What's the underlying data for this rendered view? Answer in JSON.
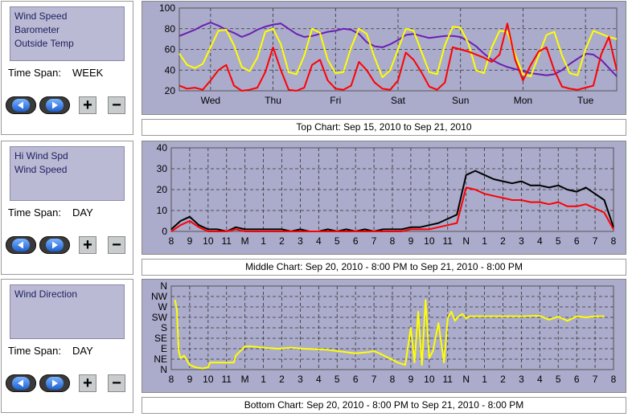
{
  "panels": [
    {
      "series_labels": [
        "Wind Speed",
        "Barometer",
        "Outside Temp"
      ],
      "time_span_label": "Time Span:",
      "time_span_value": "WEEK",
      "caption": "Top Chart:  Sep 15, 2010  to  Sep 21, 2010"
    },
    {
      "series_labels": [
        "Hi Wind Spd",
        "Wind Speed"
      ],
      "time_span_label": "Time Span:",
      "time_span_value": "DAY",
      "caption": "Middle Chart:  Sep 20, 2010 - 8:00 PM  to  Sep 21, 2010 - 8:00 PM"
    },
    {
      "series_labels": [
        "Wind Direction"
      ],
      "time_span_label": "Time Span:",
      "time_span_value": "DAY",
      "caption": "Bottom Chart:  Sep 20, 2010 - 8:00 PM  to  Sep 21, 2010 - 8:00 PM"
    }
  ],
  "buttons": {
    "plus": "+",
    "minus": "−"
  },
  "icons": {
    "back": "back-arrow-icon",
    "forward": "forward-arrow-icon"
  },
  "colors": {
    "plot_bg": "#ababcc",
    "wind_speed": "#ff0000",
    "hi_wind": "#000000",
    "barometer": "#6a1fb0",
    "temp": "#ffff00",
    "direction": "#ffff00"
  },
  "chart_data": [
    {
      "type": "line",
      "x_tick_labels": [
        "Wed",
        "Thu",
        "Fri",
        "Sat",
        "Sun",
        "Mon",
        "Tue"
      ],
      "y_tick_labels": [
        "20",
        "40",
        "60",
        "80",
        "100"
      ],
      "ylim": [
        20,
        100
      ],
      "grid": true,
      "series": [
        {
          "color": "#6a1fb0",
          "x": [
            0,
            0.5,
            1,
            1.5,
            2,
            2.5,
            3,
            3.5,
            4,
            4.5,
            5,
            5.5,
            6,
            6.5,
            7,
            7.5,
            8,
            8.5,
            9,
            9.5,
            10,
            10.5,
            11,
            11.5,
            12,
            12.5,
            13,
            13.5,
            14,
            14.5,
            15,
            15.5,
            16,
            16.5,
            17,
            17.5,
            18,
            18.5,
            19,
            19.5,
            20,
            20.5,
            21,
            21.5,
            22,
            22.5,
            23,
            23.5,
            24,
            24.5,
            25,
            25.5,
            26,
            26.5,
            27,
            27.5,
            28
          ],
          "values": [
            73,
            76,
            79,
            83,
            86,
            83,
            79,
            76,
            72,
            75,
            79,
            82,
            84,
            85,
            80,
            75,
            72,
            73,
            75,
            77,
            78,
            80,
            79,
            75,
            67,
            63,
            62,
            65,
            69,
            74,
            75,
            73,
            71,
            72,
            73,
            73,
            72,
            68,
            63,
            56,
            50,
            46,
            43,
            41,
            39,
            37,
            36,
            35,
            36,
            40,
            46,
            51,
            56,
            55,
            50,
            42,
            34
          ]
        },
        {
          "color": "#ffff00",
          "x": [
            0,
            0.5,
            1,
            1.5,
            2,
            2.5,
            3,
            3.5,
            4,
            4.5,
            5,
            5.5,
            6,
            6.5,
            7,
            7.5,
            8,
            8.5,
            9,
            9.5,
            10,
            10.5,
            11,
            11.5,
            12,
            12.5,
            13,
            13.5,
            14,
            14.5,
            15,
            15.5,
            16,
            16.5,
            17,
            17.5,
            18,
            18.5,
            19,
            19.5,
            20,
            20.5,
            21,
            21.5,
            22,
            22.5,
            23,
            23.5,
            24,
            24.5,
            25,
            25.5,
            26,
            26.5,
            27,
            27.5,
            28
          ],
          "values": [
            56,
            45,
            42,
            46,
            62,
            78,
            79,
            64,
            43,
            39,
            52,
            77,
            80,
            65,
            38,
            36,
            54,
            80,
            76,
            50,
            37,
            38,
            62,
            80,
            75,
            52,
            33,
            40,
            60,
            80,
            78,
            58,
            38,
            36,
            64,
            82,
            81,
            66,
            40,
            37,
            62,
            78,
            77,
            55,
            36,
            34,
            54,
            74,
            77,
            54,
            37,
            35,
            60,
            78,
            75,
            72,
            70
          ]
        },
        {
          "color": "#ff0000",
          "x": [
            0,
            0.5,
            1,
            1.5,
            2,
            2.5,
            3,
            3.5,
            4,
            4.5,
            5,
            5.5,
            6,
            6.5,
            7,
            7.5,
            8,
            8.5,
            9,
            9.5,
            10,
            10.5,
            11,
            11.5,
            12,
            12.5,
            13,
            13.5,
            14,
            14.5,
            15,
            15.5,
            16,
            16.5,
            17,
            17.5,
            18,
            18.5,
            19,
            19.5,
            20,
            20.5,
            21,
            21.5,
            22,
            22.5,
            23,
            23.5,
            24,
            24.5,
            25,
            25.5,
            26,
            26.5,
            27,
            27.5,
            28
          ],
          "values": [
            25,
            22,
            23,
            21,
            30,
            40,
            45,
            25,
            20,
            21,
            23,
            38,
            62,
            40,
            21,
            20,
            23,
            45,
            50,
            30,
            22,
            21,
            25,
            48,
            40,
            28,
            22,
            21,
            30,
            57,
            50,
            38,
            24,
            21,
            28,
            62,
            60,
            58,
            55,
            52,
            48,
            55,
            85,
            50,
            30,
            45,
            58,
            62,
            40,
            24,
            22,
            21,
            23,
            25,
            55,
            72,
            40
          ]
        }
      ]
    },
    {
      "type": "line",
      "x_tick_labels": [
        "8",
        "9",
        "10",
        "11",
        "M",
        "1",
        "2",
        "3",
        "4",
        "5",
        "6",
        "7",
        "8",
        "9",
        "10",
        "11",
        "N",
        "1",
        "2",
        "3",
        "4",
        "5",
        "6",
        "7",
        "8"
      ],
      "y_tick_labels": [
        "0",
        "10",
        "20",
        "30",
        "40"
      ],
      "ylim": [
        0,
        40
      ],
      "grid": true,
      "series": [
        {
          "color": "#000000",
          "x": [
            0,
            0.5,
            1,
            1.5,
            2,
            2.5,
            3,
            3.5,
            4,
            4.5,
            5,
            5.5,
            6,
            6.5,
            7,
            7.5,
            8,
            8.5,
            9,
            9.5,
            10,
            10.5,
            11,
            11.5,
            12,
            12.5,
            13,
            13.5,
            14,
            14.5,
            15,
            15.5,
            16,
            16.5,
            17,
            17.5,
            18,
            18.5,
            19,
            19.5,
            20,
            20.5,
            21,
            21.5,
            22,
            22.5,
            23,
            23.5,
            24
          ],
          "values": [
            1,
            5,
            7,
            3,
            1,
            1,
            0,
            2,
            1,
            1,
            1,
            1,
            1,
            0,
            1,
            0,
            0,
            1,
            0,
            1,
            0,
            1,
            0,
            1,
            1,
            1,
            2,
            2,
            3,
            4,
            6,
            8,
            27,
            29,
            27,
            25,
            24,
            23,
            24,
            22,
            22,
            21,
            22,
            20,
            19,
            21,
            18,
            15,
            2
          ]
        },
        {
          "color": "#ff0000",
          "x": [
            0,
            0.5,
            1,
            1.5,
            2,
            2.5,
            3,
            3.5,
            4,
            4.5,
            5,
            5.5,
            6,
            6.5,
            7,
            7.5,
            8,
            8.5,
            9,
            9.5,
            10,
            10.5,
            11,
            11.5,
            12,
            12.5,
            13,
            13.5,
            14,
            14.5,
            15,
            15.5,
            16,
            16.5,
            17,
            17.5,
            18,
            18.5,
            19,
            19.5,
            20,
            20.5,
            21,
            21.5,
            22,
            22.5,
            23,
            23.5,
            24
          ],
          "values": [
            0,
            3,
            5,
            2,
            0,
            0,
            0,
            1,
            0,
            0,
            0,
            0,
            0,
            0,
            0,
            0,
            0,
            0,
            0,
            0,
            0,
            0,
            0,
            0,
            0,
            0,
            1,
            1,
            1,
            2,
            3,
            4,
            21,
            20,
            18,
            17,
            16,
            15,
            15,
            14,
            14,
            13,
            14,
            12,
            12,
            13,
            11,
            9,
            1
          ]
        }
      ]
    },
    {
      "type": "line",
      "x_tick_labels": [
        "8",
        "9",
        "10",
        "11",
        "M",
        "1",
        "2",
        "3",
        "4",
        "5",
        "6",
        "7",
        "8",
        "9",
        "10",
        "11",
        "N",
        "1",
        "2",
        "3",
        "4",
        "5",
        "6",
        "7",
        "8"
      ],
      "y_tick_labels": [
        "N",
        "NE",
        "E",
        "SE",
        "S",
        "SW",
        "W",
        "NW",
        "N"
      ],
      "ylim": [
        0,
        360
      ],
      "grid": true,
      "series": [
        {
          "color": "#ffff00",
          "x": [
            0.2,
            0.3,
            0.4,
            0.5,
            0.7,
            1.0,
            1.3,
            1.7,
            2.0,
            2.1,
            3.4,
            3.5,
            4.0,
            4.3,
            5.0,
            5.8,
            6.5,
            7.2,
            8.5,
            9.0,
            10.0,
            10.7,
            11.0,
            11.3,
            12.3,
            12.7,
            13.0,
            13.2,
            13.4,
            13.6,
            13.8,
            14.0,
            14.2,
            14.5,
            14.8,
            15.0,
            15.2,
            15.4,
            15.6,
            15.8,
            16.0,
            16.2,
            16.5,
            17.0,
            18.0,
            19.0,
            20.0,
            20.5,
            21.0,
            21.5,
            22.0,
            22.5,
            23.0,
            23.5
          ],
          "values": [
            300,
            260,
            80,
            50,
            60,
            20,
            10,
            5,
            10,
            30,
            30,
            60,
            100,
            100,
            95,
            90,
            95,
            90,
            85,
            80,
            70,
            75,
            80,
            70,
            30,
            20,
            180,
            30,
            250,
            20,
            300,
            50,
            80,
            200,
            30,
            220,
            250,
            210,
            230,
            240,
            220,
            230,
            230,
            230,
            230,
            230,
            232,
            215,
            228,
            210,
            230,
            225,
            230,
            230
          ]
        }
      ]
    }
  ]
}
